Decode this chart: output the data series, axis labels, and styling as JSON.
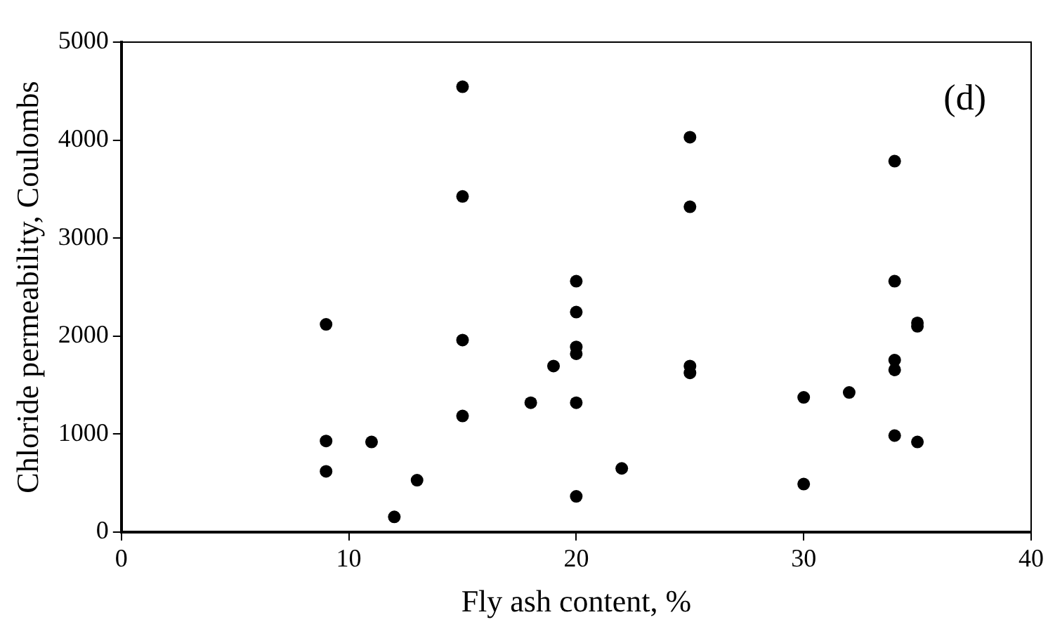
{
  "chart_data": {
    "type": "scatter",
    "xlabel": "Fly ash content, %",
    "ylabel": "Chloride permeability, Coulombs",
    "annotations": [
      "(d)"
    ],
    "x": [
      9,
      9,
      9,
      11,
      12,
      13,
      15,
      15,
      15,
      15,
      18,
      19,
      20,
      20,
      20,
      20,
      20,
      20,
      22,
      25,
      25,
      25,
      25,
      30,
      30,
      32,
      34,
      34,
      34,
      34,
      34,
      35,
      35,
      35
    ],
    "series": [
      {
        "color": "#000000",
        "values": [
          2120,
          930,
          620,
          920,
          155,
          530,
          4545,
          3425,
          1960,
          1185,
          1320,
          1695,
          2560,
          2245,
          1890,
          1820,
          1320,
          365,
          650,
          4030,
          3320,
          1695,
          1625,
          1375,
          490,
          1425,
          3785,
          2560,
          1755,
          1655,
          985,
          2135,
          2100,
          920
        ]
      }
    ],
    "xlim": [
      0,
      40
    ],
    "xticks": [
      0,
      10,
      20,
      30,
      40
    ],
    "ylim": [
      0,
      5000
    ],
    "yticks": [
      0,
      1000,
      2000,
      3000,
      4000,
      5000
    ],
    "grid": false,
    "legend": false,
    "marker": "circle"
  }
}
